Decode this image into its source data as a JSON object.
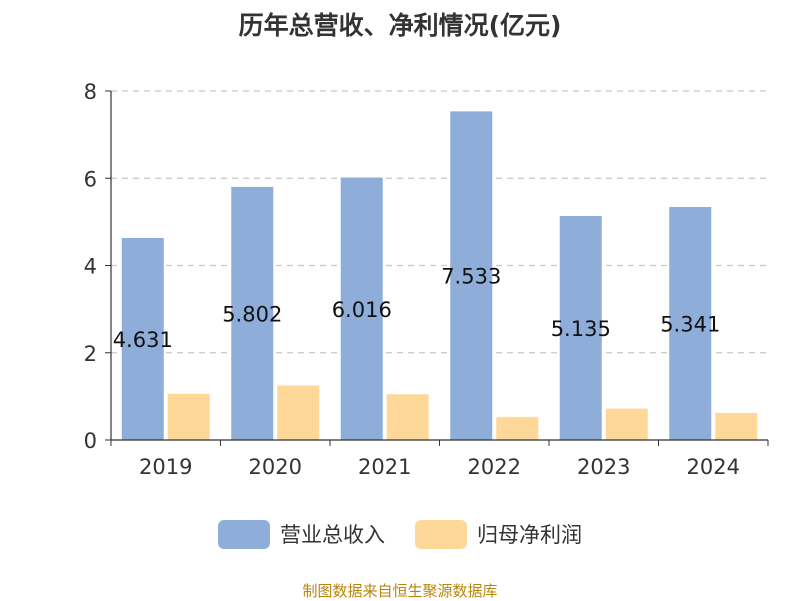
{
  "colors": {
    "revenue": "#8eadd9",
    "profit": "#fdd898",
    "grid": "#c8c8c8",
    "axis": "#333333",
    "text": "#333333",
    "source": "#b8860b"
  },
  "chart_data": {
    "type": "bar",
    "title": "历年总营收、净利情况(亿元)",
    "categories": [
      "2019",
      "2020",
      "2021",
      "2022",
      "2023",
      "2024"
    ],
    "series": [
      {
        "name": "营业总收入",
        "values": [
          4.631,
          5.802,
          6.016,
          7.533,
          5.135,
          5.341
        ],
        "color": "#8eadd9",
        "data_labels": [
          "4.631",
          "5.802",
          "6.016",
          "7.533",
          "5.135",
          "5.341"
        ]
      },
      {
        "name": "归母净利润",
        "values": [
          1.06,
          1.25,
          1.05,
          0.53,
          0.72,
          0.62
        ],
        "color": "#fdd898"
      }
    ],
    "ylim": [
      0,
      8
    ],
    "yticks": [
      0,
      2,
      4,
      6,
      8
    ],
    "grid": true,
    "legend_position": "bottom"
  },
  "source_text": "制图数据来自恒生聚源数据库"
}
